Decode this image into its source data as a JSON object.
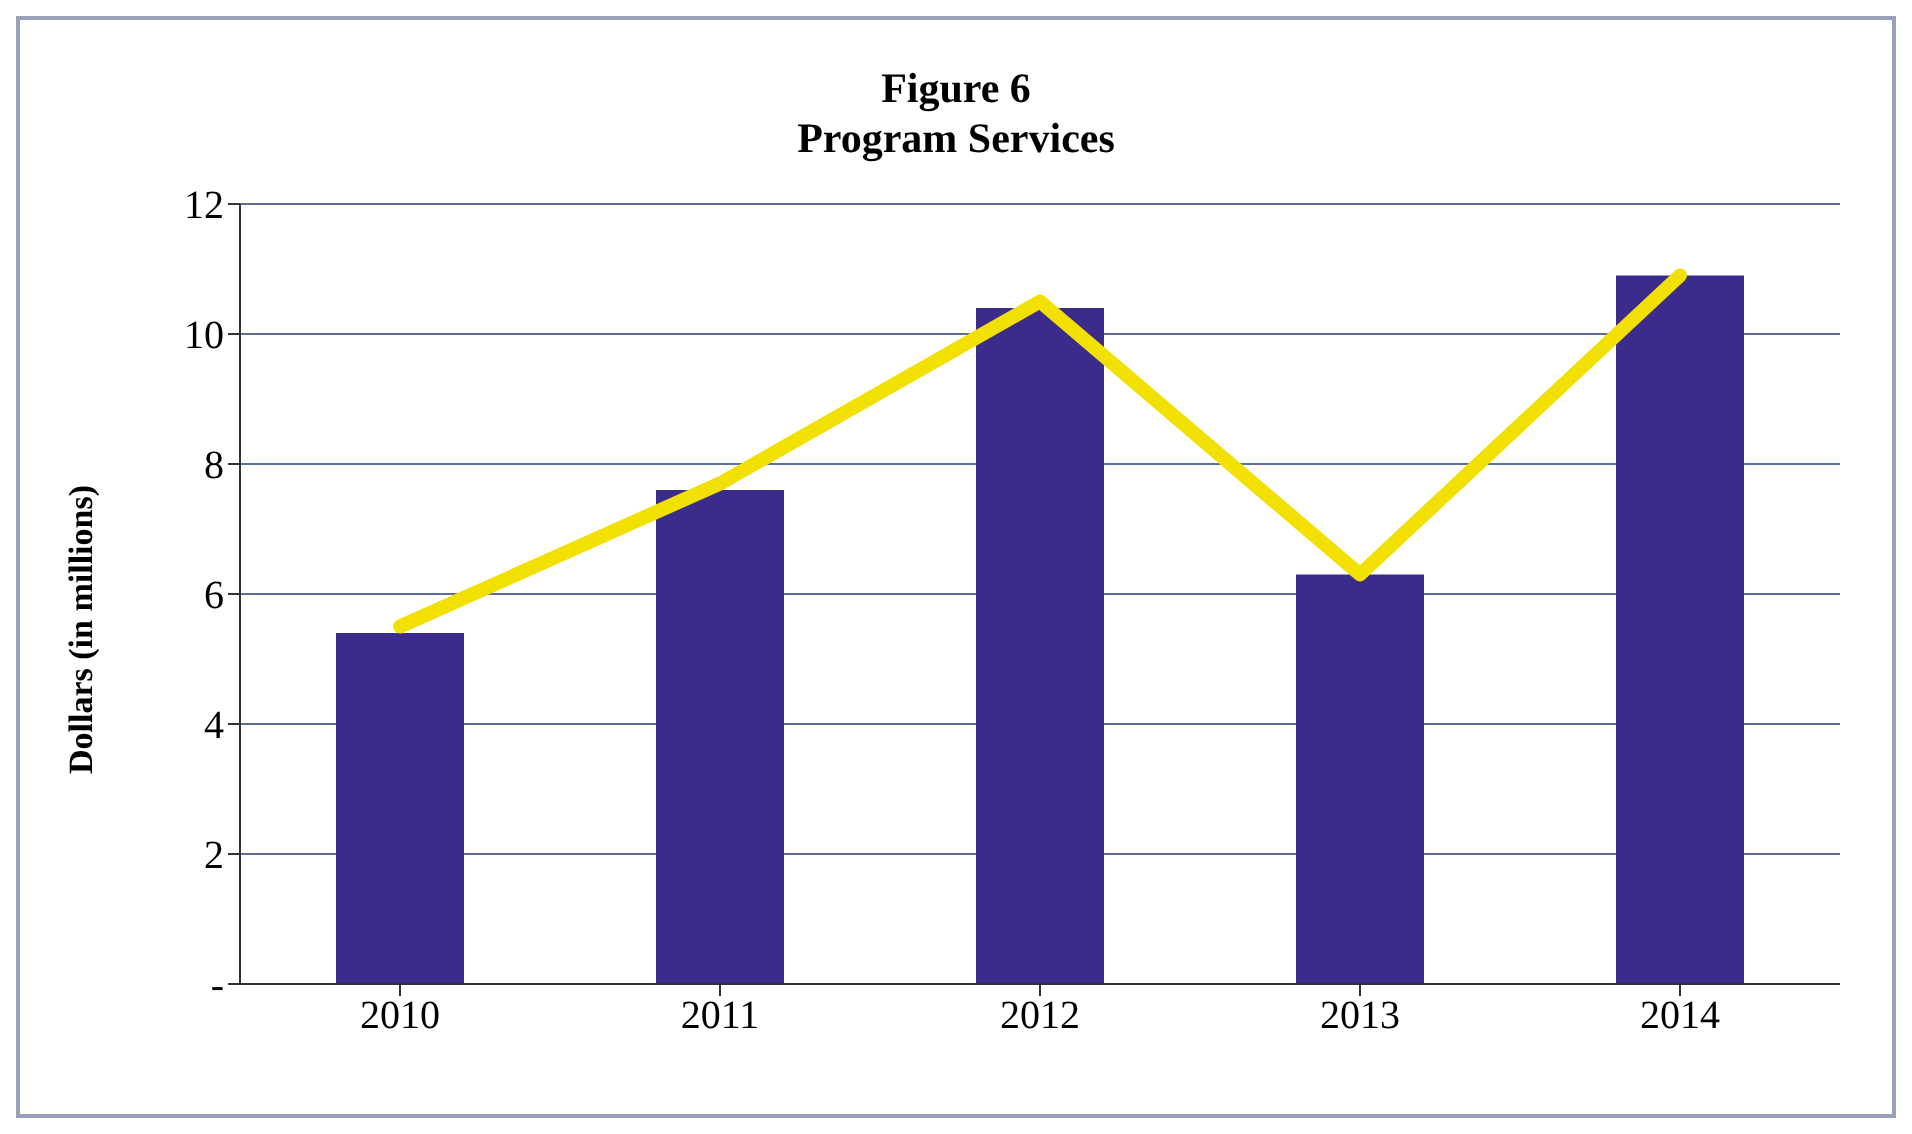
{
  "chart_data": {
    "type": "bar",
    "title": "Figure 6",
    "subtitle": "Program Services",
    "ylabel": "Dollars (in millions)",
    "categories": [
      "2010",
      "2011",
      "2012",
      "2013",
      "2014"
    ],
    "series": [
      {
        "color": "#3b2c8c",
        "values": [
          5.4,
          7.6,
          10.4,
          6.3,
          10.9
        ]
      },
      {
        "type": "line",
        "color": "#f2e000",
        "values": [
          5.5,
          7.7,
          10.5,
          6.3,
          10.9
        ]
      }
    ],
    "ylim": [
      0,
      12
    ],
    "yticks": [
      {
        "value": 0,
        "label": "-"
      },
      2,
      4,
      6,
      8,
      10,
      12
    ],
    "grid": "y",
    "marker": "none",
    "line_style": "solid"
  }
}
